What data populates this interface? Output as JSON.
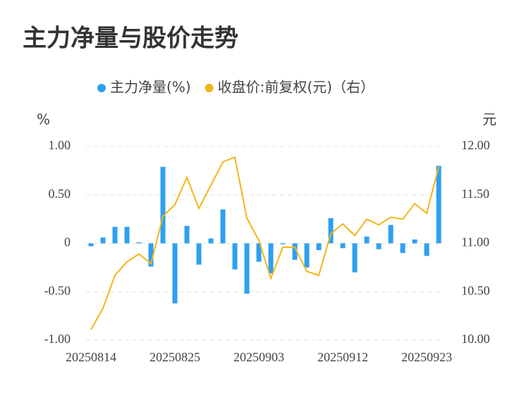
{
  "chart_data": {
    "type": "bar_line",
    "title": "主力净量与股价走势",
    "y_label": "%",
    "y2_label": "元",
    "categories": [
      "20250814",
      null,
      null,
      null,
      null,
      null,
      null,
      "20250825",
      null,
      null,
      null,
      null,
      null,
      null,
      "20250903",
      null,
      null,
      null,
      null,
      null,
      null,
      "20250912",
      null,
      null,
      null,
      null,
      null,
      null,
      "20250923",
      null
    ],
    "series": [
      {
        "name": "主力净量(%)",
        "color": "#2e9ff0",
        "kind": "bar",
        "values": [
          -0.03,
          0.06,
          0.17,
          0.17,
          0.01,
          -0.24,
          0.79,
          -0.62,
          0.18,
          -0.22,
          0.05,
          0.35,
          -0.27,
          -0.52,
          -0.19,
          -0.31,
          -0.01,
          -0.17,
          -0.25,
          -0.07,
          0.26,
          -0.05,
          -0.3,
          0.07,
          -0.06,
          0.19,
          -0.1,
          0.04,
          -0.13,
          0.8
        ]
      },
      {
        "name": "收盘价:前复权(元)（右）",
        "color": "#f2b519",
        "kind": "line",
        "axis": "y2",
        "values": [
          10.11,
          10.33,
          10.67,
          10.81,
          10.89,
          10.79,
          11.28,
          11.4,
          11.68,
          11.36,
          11.6,
          11.84,
          11.89,
          11.26,
          11.03,
          10.64,
          10.96,
          10.96,
          10.71,
          10.67,
          11.1,
          11.2,
          11.08,
          11.25,
          11.19,
          11.27,
          11.25,
          11.41,
          11.31,
          11.79
        ]
      }
    ],
    "ylim": [
      -1,
      1
    ],
    "yticks": [
      {
        "value": 1,
        "label": "1.00"
      },
      {
        "value": 0.5,
        "label": "0.50"
      },
      0,
      {
        "value": -0.5,
        "label": "-0.50"
      },
      {
        "value": -1,
        "label": "-1.00"
      }
    ],
    "y2lim": [
      10,
      12
    ],
    "y2ticks": [
      {
        "value": 12,
        "label": "12.00"
      },
      {
        "value": 11.5,
        "label": "11.50"
      },
      {
        "value": 11,
        "label": "11.00"
      },
      {
        "value": 10.5,
        "label": "10.50"
      },
      {
        "value": 10,
        "label": "10.00"
      }
    ],
    "grid": true
  }
}
